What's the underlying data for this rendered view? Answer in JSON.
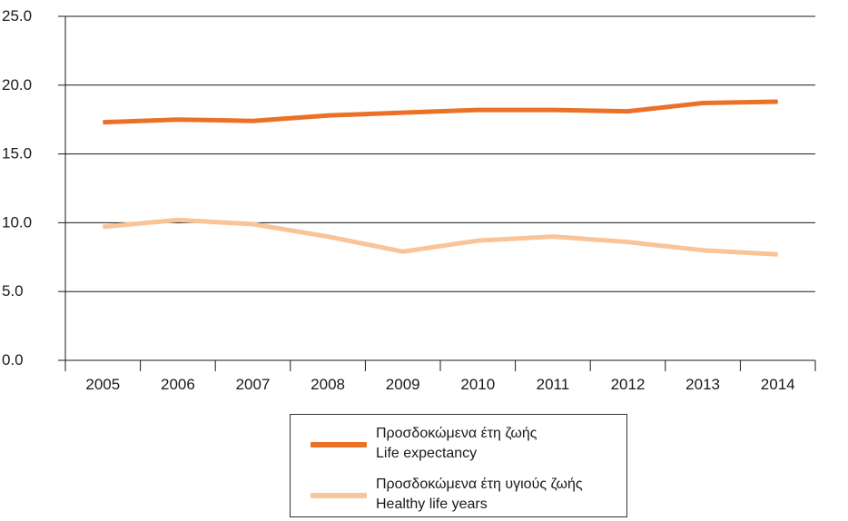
{
  "chart_data": {
    "type": "line",
    "categories": [
      "2005",
      "2006",
      "2007",
      "2008",
      "2009",
      "2010",
      "2011",
      "2012",
      "2013",
      "2014"
    ],
    "series": [
      {
        "name": "Προσδοκώμενα έτη ζωής",
        "name_en": "Life expectancy",
        "color": "#ea7125",
        "values": [
          17.3,
          17.5,
          17.4,
          17.8,
          18.0,
          18.2,
          18.2,
          18.1,
          18.7,
          18.8
        ]
      },
      {
        "name": "Προσδοκώμενα έτη υγιούς ζωής",
        "name_en": "Healthy life years",
        "color": "#f9c497",
        "values": [
          9.7,
          10.2,
          9.9,
          9.0,
          7.9,
          8.7,
          9.0,
          8.6,
          8.0,
          7.7
        ]
      }
    ],
    "y_ticks": [
      "0.0",
      "5.0",
      "10.0",
      "15.0",
      "20.0",
      "25.0"
    ],
    "ylim": [
      0,
      25
    ],
    "grid": true,
    "legend_position": "bottom-center"
  }
}
